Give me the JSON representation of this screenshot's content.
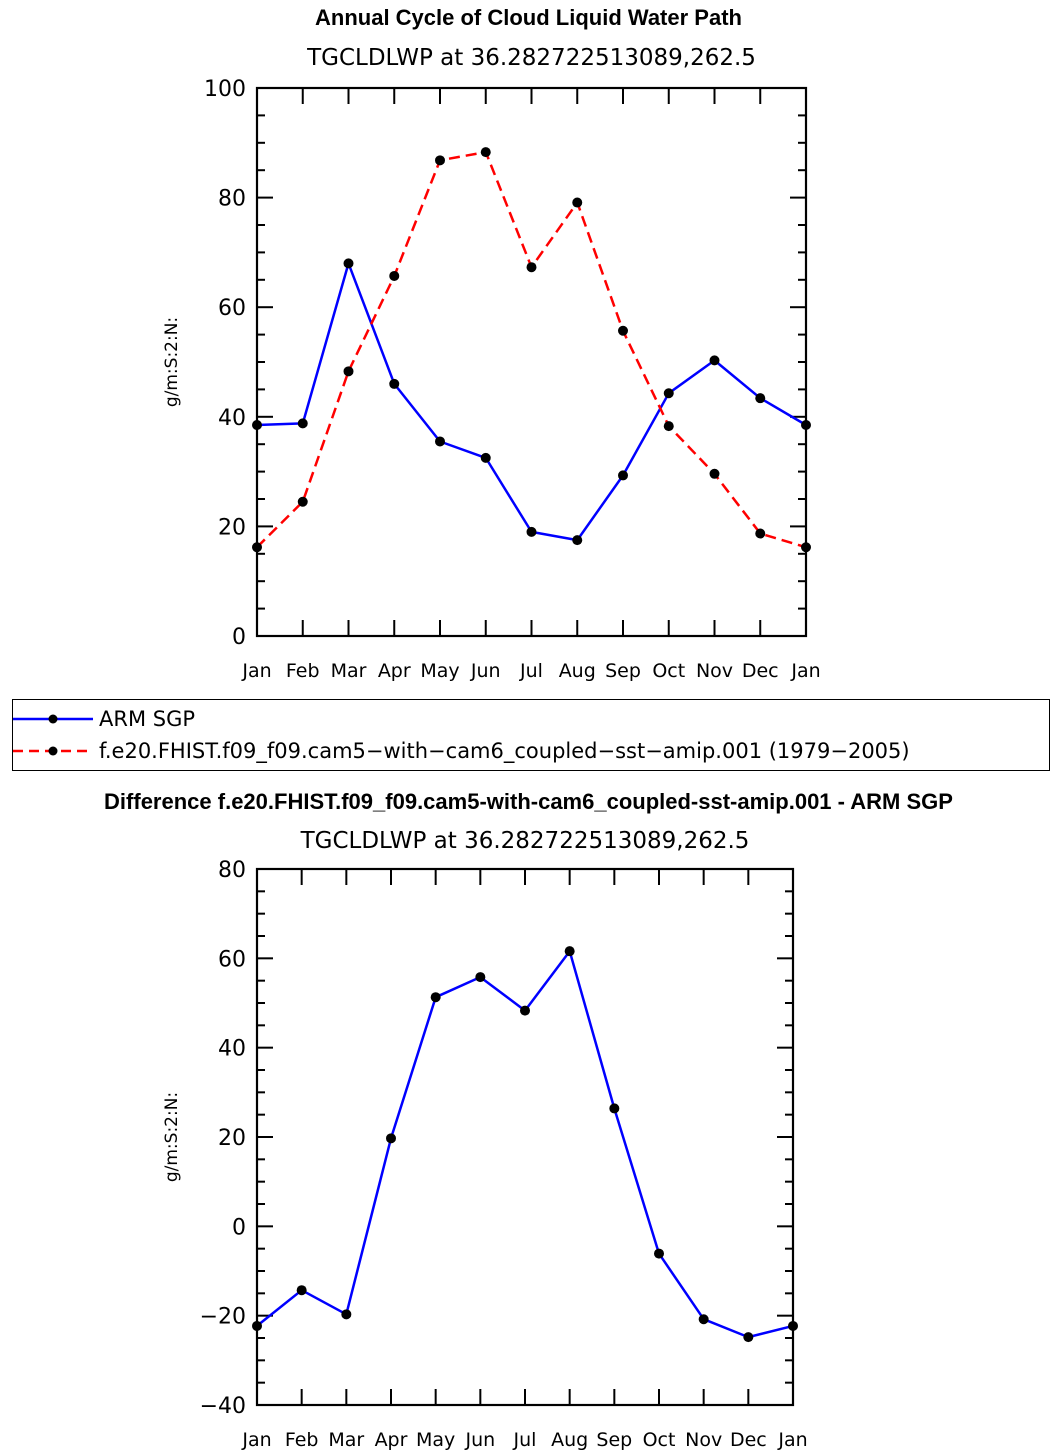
{
  "chart_data": [
    {
      "type": "line",
      "title": "Annual Cycle of Cloud Liquid Water Path",
      "subtitle": "TGCLDLWP  at 36.282722513089,262.5",
      "ylabel": "g/m:S:2:N:",
      "ylim": [
        0,
        100
      ],
      "yticks": [
        0,
        20,
        40,
        60,
        80,
        100
      ],
      "categories": [
        "Jan",
        "Feb",
        "Mar",
        "Apr",
        "May",
        "Jun",
        "Jul",
        "Aug",
        "Sep",
        "Oct",
        "Nov",
        "Dec",
        "Jan"
      ],
      "series": [
        {
          "name": "ARM SGP",
          "color": "#0000ff",
          "dash": "solid",
          "values": [
            38.5,
            38.8,
            68.0,
            46.0,
            35.5,
            32.5,
            19.0,
            17.5,
            29.3,
            44.3,
            50.3,
            43.4,
            38.5
          ]
        },
        {
          "name": "f.e20.FHIST.f09_f09.cam5-with-cam6_coupled-sst-amip.001 (1979-2005)",
          "color": "#ff0000",
          "dash": "dashed",
          "values": [
            16.2,
            24.5,
            48.3,
            65.7,
            86.8,
            88.3,
            67.3,
            79.1,
            55.7,
            38.3,
            29.6,
            18.7,
            16.2
          ]
        }
      ]
    },
    {
      "type": "line",
      "title": "Difference f.e20.FHIST.f09_f09.cam5-with-cam6_coupled-sst-amip.001 - ARM SGP",
      "subtitle": "TGCLDLWP  at 36.282722513089,262.5",
      "ylabel": "g/m:S:2:N:",
      "ylim": [
        -40,
        80
      ],
      "yticks": [
        -40,
        -20,
        0,
        20,
        40,
        60,
        80
      ],
      "categories": [
        "Jan",
        "Feb",
        "Mar",
        "Apr",
        "May",
        "Jun",
        "Jul",
        "Aug",
        "Sep",
        "Oct",
        "Nov",
        "Dec",
        "Jan"
      ],
      "series": [
        {
          "name": "Difference",
          "color": "#0000ff",
          "dash": "solid",
          "values": [
            -22.3,
            -14.3,
            -19.7,
            19.7,
            51.3,
            55.8,
            48.3,
            61.6,
            26.4,
            -6.1,
            -20.8,
            -24.8,
            -22.3
          ]
        }
      ]
    }
  ],
  "legend": {
    "entries": [
      {
        "label": "ARM SGP",
        "color": "#0000ff",
        "dash": "solid"
      },
      {
        "label": "f.e20.FHIST.f09_f09.cam5−with−cam6_coupled−sst−amip.001 (1979−2005)",
        "color": "#ff0000",
        "dash": "dashed"
      }
    ]
  }
}
